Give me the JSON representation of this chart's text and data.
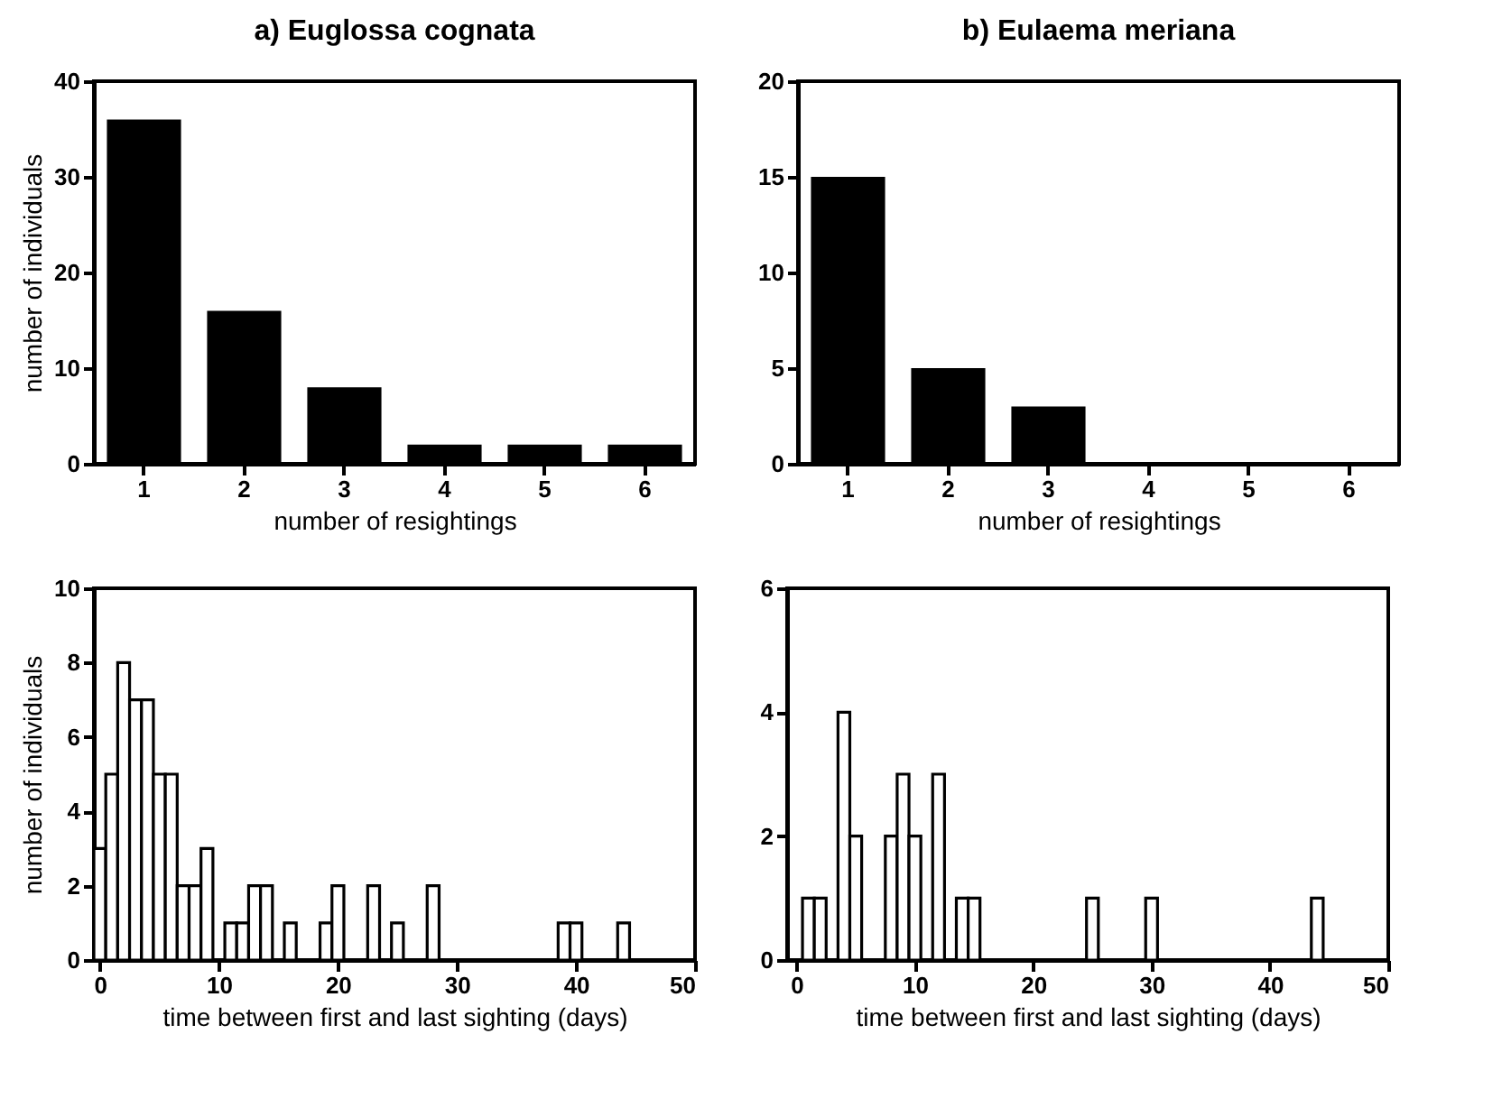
{
  "chart_data": [
    {
      "type": "bar",
      "title": "a)  Euglossa  cognata",
      "categories": [
        "1",
        "2",
        "3",
        "4",
        "5",
        "6"
      ],
      "values": [
        36,
        16,
        8,
        2,
        2,
        2
      ],
      "color": "#000000",
      "xlabel": "number of resightings",
      "ylabel": "number of individuals",
      "ylim": [
        0,
        40
      ],
      "yticks": [
        0,
        10,
        20,
        30,
        40
      ]
    },
    {
      "type": "bar",
      "title": "b)  Eulaema  meriana",
      "categories": [
        "1",
        "2",
        "3",
        "4",
        "5",
        "6"
      ],
      "values": [
        15,
        5,
        3,
        0,
        0,
        0
      ],
      "color": "#000000",
      "xlabel": "number of resightings",
      "ylim": [
        0,
        20
      ],
      "yticks": [
        0,
        5,
        10,
        15,
        20
      ]
    },
    {
      "type": "histogram",
      "bins": [
        -0.5,
        0.5,
        1.5,
        2.5,
        3.5,
        4.5,
        5.5,
        6.5,
        7.5,
        8.5,
        9.5,
        10.5,
        11.5,
        12.5,
        13.5,
        14.5,
        15.5,
        16.5,
        17.5,
        18.5,
        19.5,
        20.5,
        21.5,
        22.5,
        23.5,
        24.5,
        25.5,
        26.5,
        27.5,
        28.5,
        29.5,
        30.5,
        31.5,
        32.5,
        33.5,
        34.5,
        35.5,
        36.5,
        37.5,
        38.5,
        39.5,
        40.5,
        41.5,
        42.5,
        43.5,
        44.5
      ],
      "values": [
        3,
        5,
        8,
        7,
        7,
        5,
        5,
        2,
        2,
        3,
        0,
        1,
        1,
        2,
        2,
        0,
        1,
        0,
        0,
        1,
        2,
        0,
        0,
        2,
        0,
        1,
        0,
        0,
        2,
        0,
        0,
        0,
        0,
        0,
        0,
        0,
        0,
        0,
        0,
        1,
        1,
        0,
        0,
        0,
        1
      ],
      "color": "#ffffff",
      "xlabel": "time between first and last sighting (days)",
      "ylabel": "number of individuals",
      "xlim": [
        -0.5,
        50
      ],
      "xticks": [
        0,
        10,
        20,
        30,
        40,
        50
      ],
      "ylim": [
        0,
        10
      ],
      "yticks": [
        0,
        2,
        4,
        6,
        8,
        10
      ]
    },
    {
      "type": "histogram",
      "bins": [
        0.5,
        1.5,
        2.5,
        3.5,
        4.5,
        5.5,
        6.5,
        7.5,
        8.5,
        9.5,
        10.5,
        11.5,
        12.5,
        13.5,
        14.5,
        15.5,
        16.5,
        17.5,
        18.5,
        19.5,
        20.5,
        21.5,
        22.5,
        23.5,
        24.5,
        25.5,
        26.5,
        27.5,
        28.5,
        29.5,
        30.5,
        31.5,
        32.5,
        33.5,
        34.5,
        35.5,
        36.5,
        37.5,
        38.5,
        39.5,
        40.5,
        41.5,
        42.5,
        43.5,
        44.5
      ],
      "values": [
        1,
        1,
        0,
        4,
        2,
        0,
        0,
        2,
        3,
        2,
        0,
        3,
        0,
        1,
        1,
        0,
        0,
        0,
        0,
        0,
        0,
        0,
        0,
        0,
        1,
        0,
        0,
        0,
        0,
        1,
        0,
        0,
        0,
        0,
        0,
        0,
        0,
        0,
        0,
        0,
        0,
        0,
        0,
        1
      ],
      "color": "#ffffff",
      "xlabel": "time between first and last sighting (days)",
      "xlim": [
        -0.8,
        50
      ],
      "xticks": [
        0,
        10,
        20,
        30,
        40,
        50
      ],
      "ylim": [
        0,
        6
      ],
      "yticks": [
        0,
        2,
        4,
        6
      ]
    }
  ]
}
